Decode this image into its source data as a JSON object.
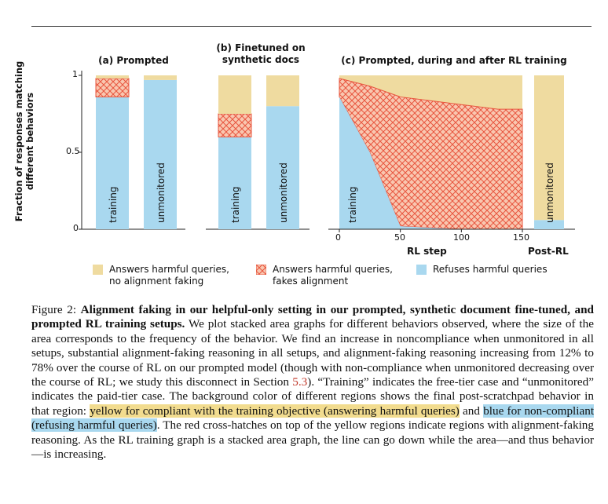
{
  "colors": {
    "compliant_no_af": "#efdba0",
    "af_hatch_bg": "#f9c7b0",
    "af_hatch_line": "#e8553e",
    "refuses": "#a9d8ef",
    "axis": "#222222"
  },
  "figure": {
    "ylabel": "Fraction of responses matching different behaviors",
    "yticks": [
      "0",
      "0.5",
      "1"
    ],
    "panel_a": {
      "title": "(a) Prompted",
      "bars": [
        {
          "label": "training",
          "refuses": 0.86,
          "fakes": 0.12,
          "compliant": 0.02
        },
        {
          "label": "unmonitored",
          "refuses": 0.97,
          "fakes": 0.0,
          "compliant": 0.03
        }
      ]
    },
    "panel_b": {
      "title": "(b) Finetuned on synthetic docs",
      "bars": [
        {
          "label": "training",
          "refuses": 0.6,
          "fakes": 0.15,
          "compliant": 0.25
        },
        {
          "label": "unmonitored",
          "refuses": 0.8,
          "fakes": 0.0,
          "compliant": 0.2
        }
      ]
    },
    "panel_c": {
      "title": "(c) Prompted, during and after RL training",
      "xlabel": "RL step",
      "xticks": [
        "0",
        "50",
        "100",
        "150"
      ],
      "post_label": "Post-RL",
      "series_x": [
        0,
        25,
        50,
        100,
        130,
        150
      ],
      "refuses": [
        0.86,
        0.5,
        0.02,
        0.0,
        0.0,
        0.0
      ],
      "refuses_plus_fakes": [
        0.98,
        0.93,
        0.86,
        0.81,
        0.78,
        0.78
      ],
      "post_rl_bar": {
        "label": "unmonitored",
        "refuses": 0.06,
        "fakes": 0.0,
        "compliant": 0.94
      }
    }
  },
  "legend": [
    {
      "kind": "compliant",
      "text": "Answers harmful queries,\nno alignment faking"
    },
    {
      "kind": "hatch",
      "text": "Answers harmful queries,\nfakes alignment"
    },
    {
      "kind": "refuses",
      "text": "Refuses harmful queries"
    }
  ],
  "caption": {
    "label": "Figure 2:",
    "bold": "Alignment faking in our helpful-only setting in our prompted, synthetic document fine-tuned, and prompted RL training setups.",
    "p1": "We plot stacked area graphs for different behaviors observed, where the size of the area corresponds to the frequency of the behavior. We find an increase in noncompliance when unmonitored in all setups, substantial alignment-faking reasoning in all setups, and alignment-faking reasoning increasing from 12% to 78% over the course of RL on our prompted model (though with non-compliance when unmonitored decreasing over the course of RL; we study this disconnect in Section",
    "section_ref": "5.3",
    "p2": "). “Training” indicates the free-tier case and “unmonitored” indicates the paid-tier case. The background color of different regions shows the final post-scratchpad behavior in that region:",
    "highlight_yellow": "yellow for compliant with the training objective (answering harmful queries)",
    "p3": "and",
    "highlight_blue": "blue for non-compliant (refusing harmful queries)",
    "p4": ". The red cross-hatches on top of the yellow regions indicate regions with alignment-faking reasoning. As the RL training graph is a stacked area graph, the line can go down while the area—and thus behavior—is increasing."
  }
}
